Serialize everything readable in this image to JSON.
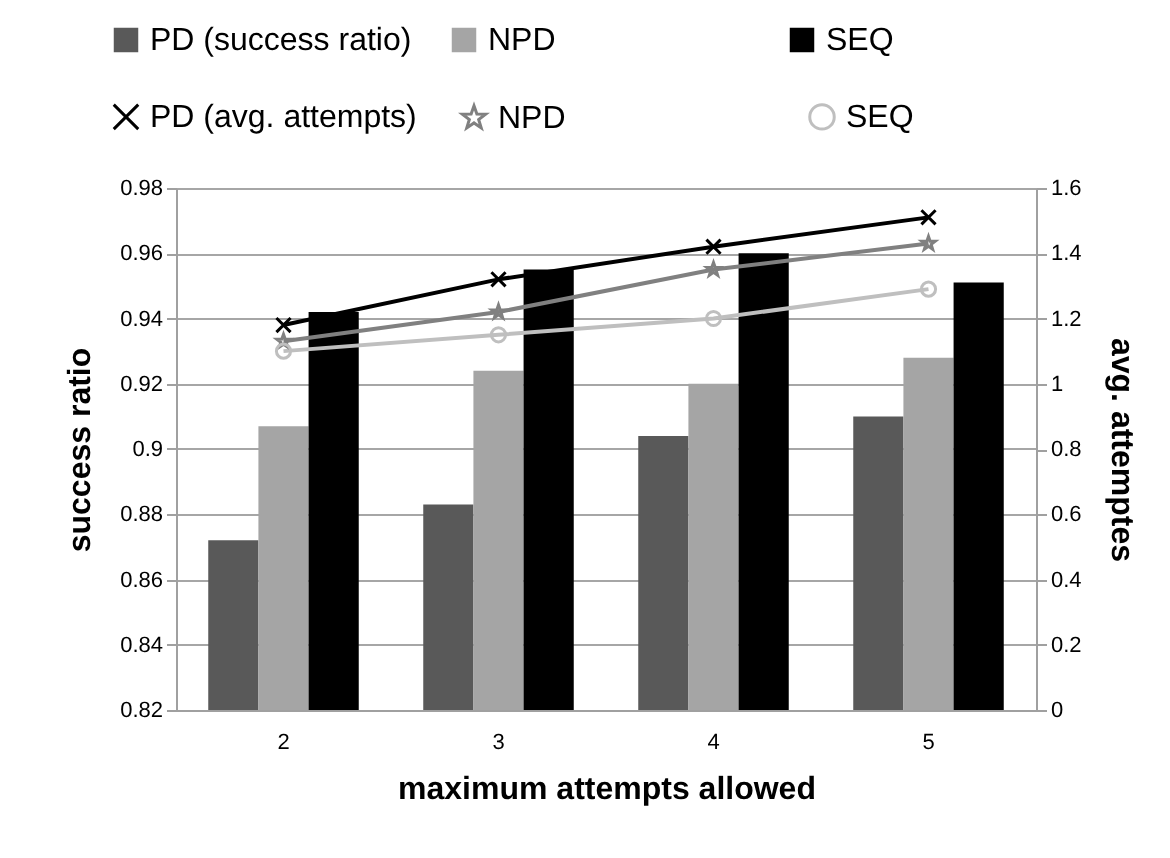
{
  "chart_data": {
    "type": "bar",
    "xlabel": "maximum attempts allowed",
    "ylabel": "success ratio",
    "y2label": "avg.  attemptes",
    "categories": [
      "2",
      "3",
      "4",
      "5"
    ],
    "series": [
      {
        "name": "PD (success ratio)",
        "color": "#595959",
        "values": [
          0.872,
          0.883,
          0.904,
          0.91
        ]
      },
      {
        "name": "NPD",
        "color": "#a5a5a5",
        "values": [
          0.907,
          0.924,
          0.92,
          0.928
        ]
      },
      {
        "name": "SEQ",
        "color": "#000000",
        "values": [
          0.942,
          0.955,
          0.96,
          0.951
        ]
      },
      {
        "name": "PD (avg. attempts)",
        "type": "line",
        "axis": "y2",
        "marker": "cross",
        "color": "#000000",
        "values": [
          1.18,
          1.32,
          1.42,
          1.51
        ]
      },
      {
        "name": "NPD",
        "type": "line",
        "axis": "y2",
        "marker": "star",
        "color": "#808080",
        "values": [
          1.13,
          1.22,
          1.35,
          1.43
        ]
      },
      {
        "name": "SEQ",
        "type": "line",
        "axis": "y2",
        "marker": "circle",
        "color": "#bfbfbf",
        "values": [
          1.1,
          1.15,
          1.2,
          1.29
        ]
      }
    ],
    "ylim": [
      0.82,
      0.98
    ],
    "yticks": [
      0.82,
      0.84,
      0.86,
      0.88,
      0.9,
      0.92,
      0.94,
      0.96,
      0.98
    ],
    "y2lim": [
      0,
      1.6
    ],
    "y2ticks": [
      0,
      0.2,
      0.4,
      0.6,
      0.8,
      1,
      1.2,
      1.4,
      1.6
    ],
    "grid": "y",
    "legend": "top"
  }
}
